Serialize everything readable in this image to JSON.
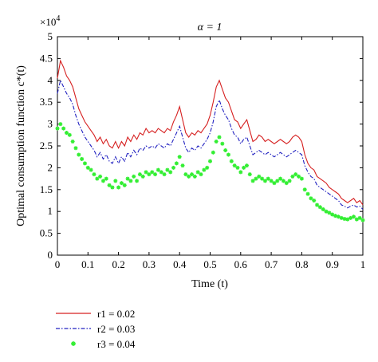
{
  "chart_data": {
    "type": "line",
    "title": "α = 1",
    "xlabel": "Time (t)",
    "ylabel": "Optimal consumption function c*(t)",
    "y_multiplier": "×10^4",
    "xlim": [
      0,
      1
    ],
    "ylim": [
      0,
      5
    ],
    "xticks": [
      "0",
      "0.1",
      "0.2",
      "0.3",
      "0.4",
      "0.5",
      "0.6",
      "0.7",
      "0.8",
      "0.9",
      "1"
    ],
    "yticks": [
      "0",
      "0.5",
      "1",
      "1.5",
      "2",
      "2.5",
      "3",
      "3.5",
      "4",
      "4.5",
      "5"
    ],
    "grid": false,
    "legend_position": "below-left",
    "x": [
      0,
      0.01,
      0.02,
      0.03,
      0.04,
      0.05,
      0.06,
      0.07,
      0.08,
      0.09,
      0.1,
      0.11,
      0.12,
      0.13,
      0.14,
      0.15,
      0.16,
      0.17,
      0.18,
      0.19,
      0.2,
      0.21,
      0.22,
      0.23,
      0.24,
      0.25,
      0.26,
      0.27,
      0.28,
      0.29,
      0.3,
      0.31,
      0.32,
      0.33,
      0.34,
      0.35,
      0.36,
      0.37,
      0.38,
      0.39,
      0.4,
      0.41,
      0.42,
      0.43,
      0.44,
      0.45,
      0.46,
      0.47,
      0.48,
      0.49,
      0.5,
      0.51,
      0.52,
      0.53,
      0.54,
      0.55,
      0.56,
      0.57,
      0.58,
      0.59,
      0.6,
      0.61,
      0.62,
      0.63,
      0.64,
      0.65,
      0.66,
      0.67,
      0.68,
      0.69,
      0.7,
      0.71,
      0.72,
      0.73,
      0.74,
      0.75,
      0.76,
      0.77,
      0.78,
      0.79,
      0.8,
      0.81,
      0.82,
      0.83,
      0.84,
      0.85,
      0.86,
      0.87,
      0.88,
      0.89,
      0.9,
      0.91,
      0.92,
      0.93,
      0.94,
      0.95,
      0.96,
      0.97,
      0.98,
      0.99,
      1
    ],
    "series": [
      {
        "name": "r1 = 0.02",
        "color": "#d62020",
        "style": "solid",
        "values": [
          4.05,
          4.45,
          4.3,
          4.1,
          4.0,
          3.85,
          3.6,
          3.35,
          3.2,
          3.05,
          2.95,
          2.85,
          2.75,
          2.6,
          2.7,
          2.55,
          2.65,
          2.5,
          2.45,
          2.6,
          2.45,
          2.6,
          2.5,
          2.7,
          2.6,
          2.75,
          2.65,
          2.8,
          2.75,
          2.9,
          2.8,
          2.85,
          2.8,
          2.9,
          2.85,
          2.8,
          2.9,
          2.85,
          3.05,
          3.2,
          3.4,
          3.1,
          2.8,
          2.7,
          2.8,
          2.75,
          2.85,
          2.8,
          2.9,
          3.0,
          3.2,
          3.5,
          3.85,
          4.0,
          3.8,
          3.6,
          3.5,
          3.3,
          3.1,
          3.05,
          2.9,
          3.0,
          3.1,
          2.85,
          2.6,
          2.65,
          2.75,
          2.7,
          2.6,
          2.65,
          2.6,
          2.55,
          2.6,
          2.65,
          2.6,
          2.55,
          2.6,
          2.7,
          2.75,
          2.7,
          2.6,
          2.3,
          2.1,
          2.0,
          1.95,
          1.8,
          1.75,
          1.7,
          1.65,
          1.55,
          1.5,
          1.45,
          1.4,
          1.3,
          1.25,
          1.2,
          1.25,
          1.3,
          1.2,
          1.25,
          1.15
        ]
      },
      {
        "name": "r2 = 0.03",
        "color": "#2020c0",
        "style": "dashdot",
        "values": [
          3.7,
          4.0,
          3.85,
          3.7,
          3.6,
          3.45,
          3.2,
          3.0,
          2.85,
          2.7,
          2.6,
          2.5,
          2.4,
          2.25,
          2.35,
          2.2,
          2.3,
          2.15,
          2.1,
          2.25,
          2.1,
          2.25,
          2.15,
          2.35,
          2.25,
          2.4,
          2.3,
          2.45,
          2.4,
          2.5,
          2.45,
          2.5,
          2.45,
          2.55,
          2.5,
          2.45,
          2.55,
          2.5,
          2.65,
          2.8,
          2.95,
          2.7,
          2.45,
          2.35,
          2.45,
          2.4,
          2.5,
          2.45,
          2.55,
          2.65,
          2.8,
          3.05,
          3.4,
          3.55,
          3.35,
          3.2,
          3.1,
          2.9,
          2.75,
          2.7,
          2.55,
          2.65,
          2.7,
          2.5,
          2.3,
          2.35,
          2.4,
          2.35,
          2.3,
          2.35,
          2.3,
          2.25,
          2.3,
          2.35,
          2.3,
          2.25,
          2.3,
          2.35,
          2.4,
          2.35,
          2.3,
          2.05,
          1.9,
          1.8,
          1.75,
          1.6,
          1.55,
          1.5,
          1.45,
          1.4,
          1.35,
          1.3,
          1.25,
          1.15,
          1.12,
          1.08,
          1.12,
          1.15,
          1.1,
          1.12,
          1.05
        ]
      },
      {
        "name": "r3 = 0.04",
        "color": "#33ee33",
        "style": "markers",
        "values": [
          2.9,
          3.0,
          2.9,
          2.8,
          2.75,
          2.6,
          2.45,
          2.3,
          2.2,
          2.1,
          2.0,
          1.95,
          1.85,
          1.75,
          1.8,
          1.7,
          1.75,
          1.6,
          1.55,
          1.7,
          1.55,
          1.65,
          1.6,
          1.75,
          1.7,
          1.8,
          1.7,
          1.85,
          1.8,
          1.9,
          1.85,
          1.9,
          1.85,
          1.95,
          1.9,
          1.85,
          1.95,
          1.9,
          2.0,
          2.1,
          2.25,
          2.05,
          1.85,
          1.8,
          1.85,
          1.8,
          1.9,
          1.85,
          1.95,
          2.0,
          2.15,
          2.35,
          2.6,
          2.7,
          2.55,
          2.4,
          2.3,
          2.15,
          2.05,
          2.0,
          1.9,
          2.0,
          2.05,
          1.85,
          1.7,
          1.75,
          1.8,
          1.75,
          1.7,
          1.75,
          1.7,
          1.65,
          1.7,
          1.75,
          1.7,
          1.65,
          1.7,
          1.8,
          1.85,
          1.8,
          1.75,
          1.5,
          1.4,
          1.3,
          1.25,
          1.15,
          1.1,
          1.05,
          1.0,
          0.97,
          0.93,
          0.9,
          0.88,
          0.85,
          0.83,
          0.82,
          0.85,
          0.88,
          0.82,
          0.85,
          0.8
        ]
      }
    ]
  }
}
